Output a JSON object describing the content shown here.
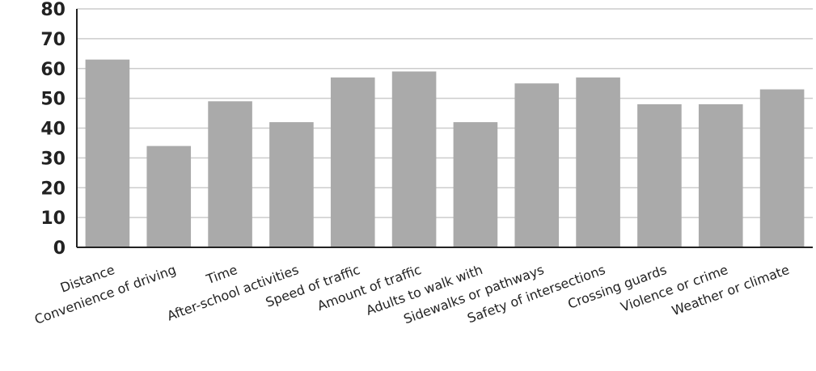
{
  "chart_data": {
    "type": "bar",
    "title": "",
    "xlabel": "",
    "ylabel": "",
    "ylim": [
      0,
      80
    ],
    "yticks": [
      0,
      10,
      20,
      30,
      40,
      50,
      60,
      70,
      80
    ],
    "grid": true,
    "categories": [
      "Distance",
      "Convenience of driving",
      "Time",
      "After-school activities",
      "Speed of traffic",
      "Amount of traffic",
      "Adults to walk with",
      "Sidewalks or pathways",
      "Safety of intersections",
      "Crossing guards",
      "Violence or crime",
      "Weather or climate"
    ],
    "values": [
      63,
      34,
      49,
      42,
      57,
      59,
      42,
      55,
      57,
      48,
      48,
      53
    ],
    "bar_color": "#aaaaaa",
    "grid_color": "#cccccc",
    "axis_color": "#222222"
  }
}
